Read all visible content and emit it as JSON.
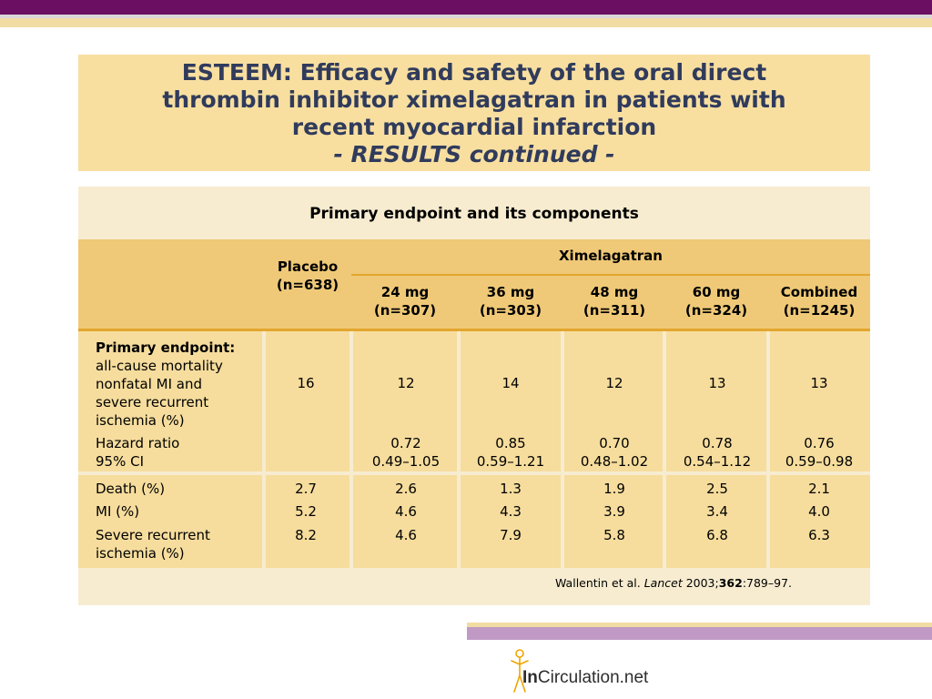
{
  "title": {
    "line1": "ESTEEM: Efficacy and safety of the oral direct",
    "line2": "thrombin inhibitor ximelagatran in patients with",
    "line3": "recent myocardial infarction",
    "line4": "- RESULTS continued -"
  },
  "table": {
    "caption": "Primary endpoint and its components",
    "headers": {
      "placebo": "Placebo",
      "placebo_n": "(n=638)",
      "ximelagatran": "Ximelagatran",
      "cols": [
        {
          "dose": "24 mg",
          "n": "(n=307)"
        },
        {
          "dose": "36 mg",
          "n": "(n=303)"
        },
        {
          "dose": "48 mg",
          "n": "(n=311)"
        },
        {
          "dose": "60 mg",
          "n": "(n=324)"
        },
        {
          "dose": "Combined",
          "n": "(n=1245)"
        }
      ]
    },
    "primary": {
      "label_bold": "Primary endpoint:",
      "label_lines": [
        "all-cause mortality",
        "nonfatal MI and",
        "severe recurrent",
        "ischemia (%)"
      ],
      "values": [
        "16",
        "12",
        "14",
        "12",
        "13",
        "13"
      ]
    },
    "hazard": {
      "label1": "Hazard ratio",
      "label2": "95% CI",
      "hr": [
        "0.72",
        "0.85",
        "0.70",
        "0.78",
        "0.76"
      ],
      "ci": [
        "0.49–1.05",
        "0.59–1.21",
        "0.48–1.02",
        "0.54–1.12",
        "0.59–0.98"
      ]
    },
    "components": [
      {
        "label": "Death (%)",
        "values": [
          "2.7",
          "2.6",
          "1.3",
          "1.9",
          "2.5",
          "2.1"
        ]
      },
      {
        "label": "MI (%)",
        "values": [
          "5.2",
          "4.6",
          "4.3",
          "3.9",
          "3.4",
          "4.0"
        ]
      },
      {
        "label": "Severe recurrent",
        "label2": "ischemia (%)",
        "values": [
          "8.2",
          "4.6",
          "7.9",
          "5.8",
          "6.8",
          "6.3"
        ]
      }
    ],
    "citation": {
      "authors": "Wallentin et al. ",
      "journal": "Lancet",
      "year": " 2003;",
      "volume": "362",
      "pages": ":789–97."
    }
  },
  "logo": {
    "prefix": "In",
    "rest": "Circulation.net",
    "accent_color": "#f0a500"
  },
  "colors": {
    "top_bar": "#6b0f63",
    "title_bg": "#f8dfa0",
    "title_text": "#303b5c",
    "header_bg": "#efc977",
    "body_bg": "#f6dd9d",
    "rule": "#e3a62e",
    "bottom_bar": "#c09ac5"
  }
}
